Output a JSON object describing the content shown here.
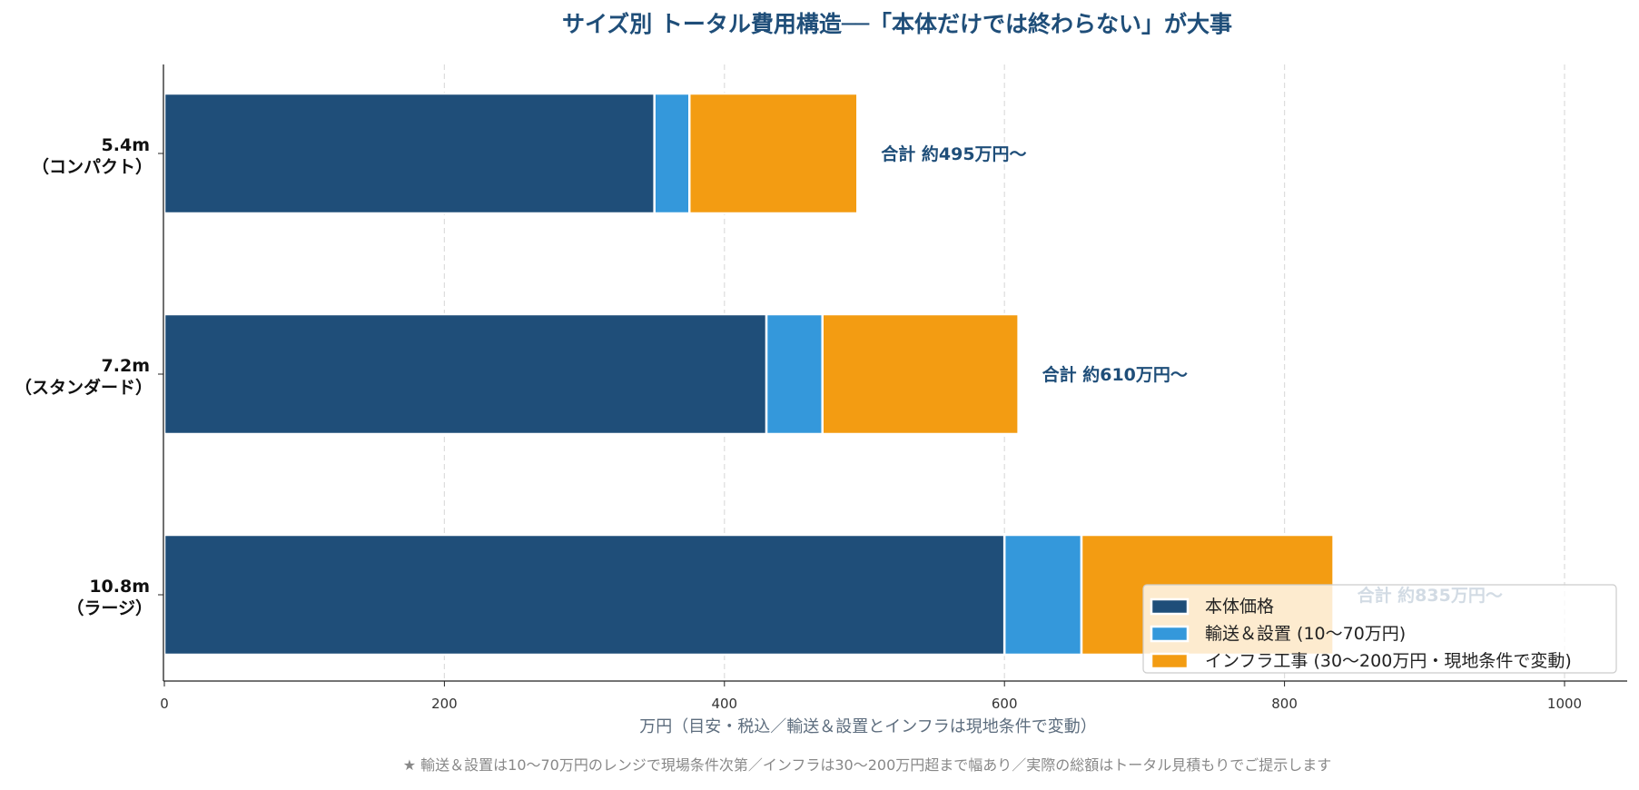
{
  "colors": {
    "body": "#1f4e79",
    "transport": "#3498db",
    "infra": "#f39c12",
    "title": "#1f4e79",
    "total_label": "#1f4e79"
  },
  "chart_data": {
    "type": "bar",
    "orientation": "horizontal",
    "stacked": true,
    "title": "サイズ別 トータル費用構造──「本体だけでは終わらない」が大事",
    "xlabel": "万円（目安・税込／輸送＆設置とインフラは現地条件で変動）",
    "ylabel": "",
    "xlim": [
      0,
      1045
    ],
    "xticks": [
      0,
      200,
      400,
      600,
      800,
      1000
    ],
    "grid": "x dashed",
    "legend_position": "lower-right",
    "categories": [
      "5.4m\n（コンパクト）",
      "7.2m\n（スタンダード）",
      "10.8m\n（ラージ）"
    ],
    "category_lines": [
      [
        "5.4m",
        "（コンパクト）"
      ],
      [
        "7.2m",
        "（スタンダード）"
      ],
      [
        "10.8m",
        "（ラージ）"
      ]
    ],
    "series": [
      {
        "name": "本体価格",
        "values": [
          350,
          430,
          600
        ]
      },
      {
        "name": "輸送＆設置 (10〜70万円)",
        "values": [
          25,
          40,
          55
        ]
      },
      {
        "name": "インフラ工事 (30〜200万円・現地条件で変動)",
        "values": [
          120,
          140,
          180
        ]
      }
    ],
    "annotations": [
      "合計 約495万円〜",
      "合計 約610万円〜",
      "合計 約835万円〜"
    ],
    "totals": [
      495,
      610,
      835
    ]
  },
  "footnote": "★ 輸送＆設置は10〜70万円のレンジで現場条件次第／インフラは30〜200万円超まで幅あり／実際の総額はトータル見積もりでご提示します"
}
